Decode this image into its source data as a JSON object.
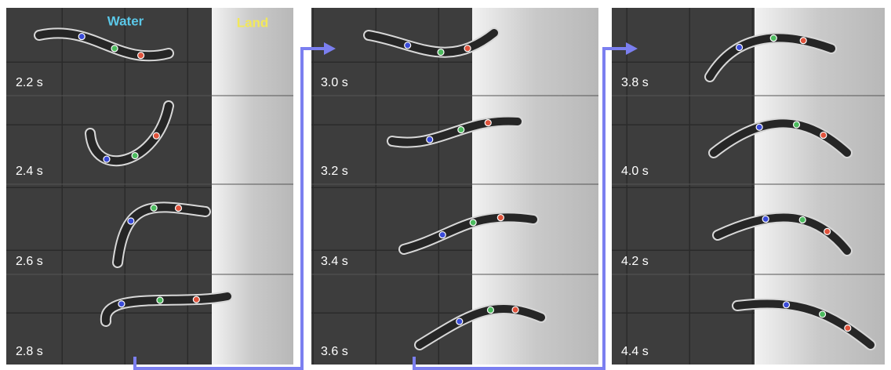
{
  "labels": {
    "water": "Water",
    "land": "Land"
  },
  "panels": [
    {
      "frames": [
        "2.2 s",
        "2.4 s",
        "2.6 s",
        "2.8 s"
      ]
    },
    {
      "frames": [
        "3.0 s",
        "3.2 s",
        "3.4 s",
        "3.6 s"
      ]
    },
    {
      "frames": [
        "3.8 s",
        "4.0 s",
        "4.2 s",
        "4.4 s"
      ]
    }
  ]
}
